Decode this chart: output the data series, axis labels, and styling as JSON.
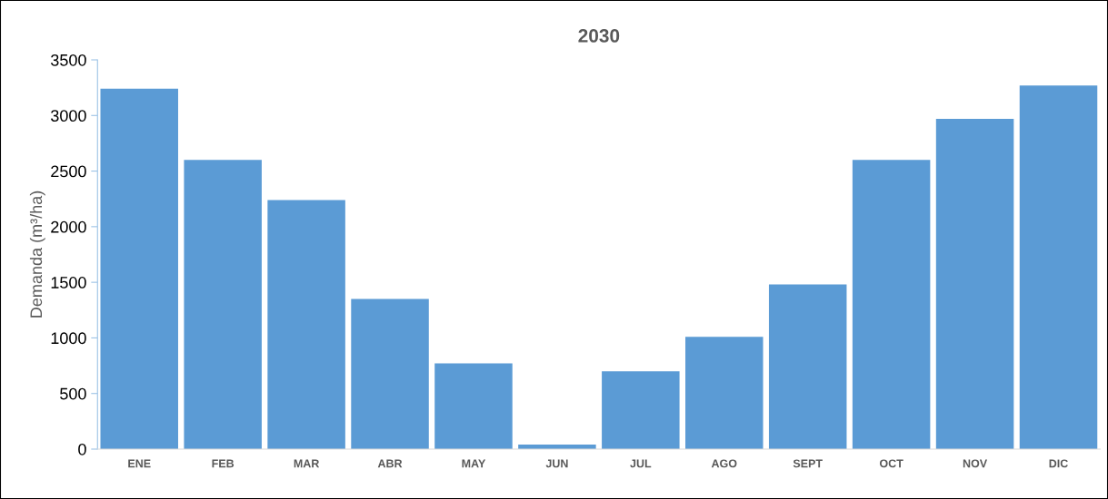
{
  "chart_data": {
    "type": "bar",
    "title": "2030",
    "ylabel": "Demanda (m³/ha)",
    "categories": [
      "ENE",
      "FEB",
      "MAR",
      "ABR",
      "MAY",
      "JUN",
      "JUL",
      "AGO",
      "SEPT",
      "OCT",
      "NOV",
      "DIC"
    ],
    "values": [
      3240,
      2600,
      2240,
      1350,
      770,
      40,
      700,
      1010,
      1480,
      2600,
      2970,
      3270
    ],
    "color": "#5b9bd5",
    "ylim": [
      0,
      3500
    ],
    "yticks": [
      0,
      500,
      1000,
      1500,
      2000,
      2500,
      3000,
      3500
    ],
    "grid": false,
    "legend": false
  }
}
